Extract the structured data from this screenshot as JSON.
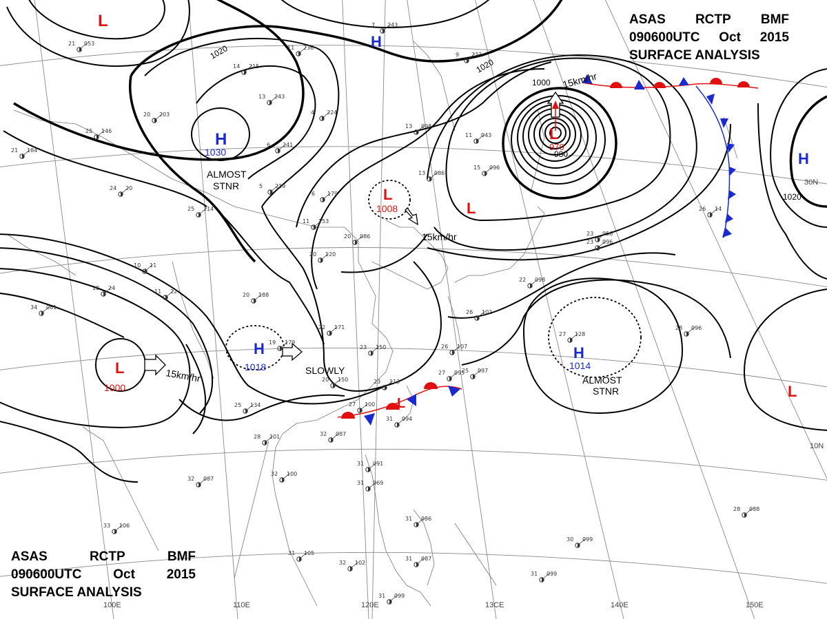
{
  "titles": {
    "top_right": {
      "line1": [
        "ASAS",
        "RCTP",
        "BMF"
      ],
      "line2": [
        "090600UTC",
        "Oct",
        "2015"
      ],
      "line3": "SURFACE ANALYSIS"
    },
    "bottom_left": {
      "line1": [
        "ASAS",
        "RCTP",
        "BMF"
      ],
      "line2": [
        "090600UTC",
        "Oct",
        "2015"
      ],
      "line3": "SURFACE ANALYSIS"
    }
  },
  "colors": {
    "high": "#1a2ad0",
    "low": "#e01010",
    "isobar": "#000000",
    "grid": "#888888",
    "coast": "#777777"
  },
  "pressure_systems": [
    {
      "kind": "L",
      "pressure": "",
      "note": ""
    },
    {
      "kind": "H",
      "pressure": "",
      "note": ""
    },
    {
      "kind": "H",
      "pressure": "1030",
      "note": "ALMOST STNR"
    },
    {
      "kind": "L",
      "pressure": "1008",
      "note": ""
    },
    {
      "kind": "L",
      "pressure": "970",
      "note": ""
    },
    {
      "kind": "L",
      "pressure": "",
      "note": ""
    },
    {
      "kind": "H",
      "pressure": "",
      "note": ""
    },
    {
      "kind": "H",
      "pressure": "1018",
      "note": "SLOWLY"
    },
    {
      "kind": "L",
      "pressure": "1000",
      "note": ""
    },
    {
      "kind": "H",
      "pressure": "1014",
      "note": "ALMOST STNR"
    },
    {
      "kind": "L",
      "pressure": "",
      "note": ""
    },
    {
      "kind": "L",
      "pressure": "",
      "note": ""
    }
  ],
  "isobar_labels": [
    "1020",
    "1020",
    "1000",
    "980",
    "1020"
  ],
  "motion_labels": [
    "15km/hr",
    "15km/hr",
    "15km/hr"
  ],
  "longitude_labels": [
    "100E",
    "110E",
    "120E",
    "13CE",
    "140E",
    "150E"
  ],
  "latitude_labels": [
    "30N",
    "10N"
  ],
  "stations": [
    {
      "v1": "21",
      "v2": "053"
    },
    {
      "v1": "14",
      "v2": "215"
    },
    {
      "v1": "11",
      "v2": "236"
    },
    {
      "v1": "7",
      "v2": "243"
    },
    {
      "v1": "9",
      "v2": "233"
    },
    {
      "v1": "13",
      "v2": "243"
    },
    {
      "v1": "20",
      "v2": "203"
    },
    {
      "v1": "4",
      "v2": "224"
    },
    {
      "v1": "13",
      "v2": "098"
    },
    {
      "v1": "11",
      "v2": "043"
    },
    {
      "v1": "15",
      "v2": "096"
    },
    {
      "v1": "13",
      "v2": "086"
    },
    {
      "v1": "6",
      "v2": "241"
    },
    {
      "v1": "5",
      "v2": "219"
    },
    {
      "v1": "6",
      "v2": "179"
    },
    {
      "v1": "20",
      "v2": "086"
    },
    {
      "v1": "20",
      "v2": "120"
    },
    {
      "v1": "11",
      "v2": "153"
    },
    {
      "v1": "20",
      "v2": "188"
    },
    {
      "v1": "22",
      "v2": "171"
    },
    {
      "v1": "23",
      "v2": "150"
    },
    {
      "v1": "19",
      "v2": "179"
    },
    {
      "v1": "20",
      "v2": "150"
    },
    {
      "v1": "23",
      "v2": "113"
    },
    {
      "v1": "26",
      "v2": "107"
    },
    {
      "v1": "27",
      "v2": "095"
    },
    {
      "v1": "25",
      "v2": "097"
    },
    {
      "v1": "27",
      "v2": "100"
    },
    {
      "v1": "25",
      "v2": "134"
    },
    {
      "v1": "28",
      "v2": "101"
    },
    {
      "v1": "32",
      "v2": "087"
    },
    {
      "v1": "32",
      "v2": "100"
    },
    {
      "v1": "32",
      "v2": "087"
    },
    {
      "v1": "31",
      "v2": "091"
    },
    {
      "v1": "31",
      "v2": "069"
    },
    {
      "v1": "34",
      "v2": "061"
    },
    {
      "v1": "26",
      "v2": "102"
    },
    {
      "v1": "22",
      "v2": "098"
    },
    {
      "v1": "27",
      "v2": "128"
    },
    {
      "v1": "28",
      "v2": "096"
    },
    {
      "v1": "23",
      "v2": "056"
    },
    {
      "v1": "23",
      "v2": "096"
    },
    {
      "v1": "26",
      "v2": "14"
    },
    {
      "v1": "33",
      "v2": "106"
    },
    {
      "v1": "31",
      "v2": "105"
    },
    {
      "v1": "32",
      "v2": "102"
    },
    {
      "v1": "31",
      "v2": "099"
    },
    {
      "v1": "30",
      "v2": "099"
    },
    {
      "v1": "31",
      "v2": "099"
    },
    {
      "v1": "28",
      "v2": "088"
    },
    {
      "v1": "31",
      "v2": "086"
    },
    {
      "v1": "31",
      "v2": "087"
    },
    {
      "v1": "31",
      "v2": "094"
    },
    {
      "v1": "25",
      "v2": "146"
    },
    {
      "v1": "21",
      "v2": "184"
    },
    {
      "v1": "24",
      "v2": "20"
    },
    {
      "v1": "25",
      "v2": "214"
    },
    {
      "v1": "11",
      "v2": "22"
    },
    {
      "v1": "10",
      "v2": "11"
    },
    {
      "v1": "18",
      "v2": "24"
    }
  ]
}
